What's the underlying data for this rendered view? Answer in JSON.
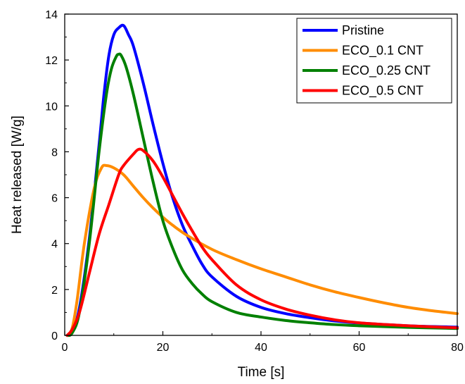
{
  "chart_data": {
    "type": "line",
    "title": "",
    "xlabel": "Time [s]",
    "ylabel": "Heat released [W/g]",
    "xlim": [
      0,
      80
    ],
    "ylim": [
      0,
      14
    ],
    "x_ticks": [
      0,
      20,
      40,
      60,
      80
    ],
    "y_ticks": [
      0,
      2,
      4,
      6,
      8,
      10,
      12,
      14
    ],
    "x_tick_labels": [
      "0",
      "20",
      "40",
      "60",
      "80"
    ],
    "y_tick_labels": [
      "0",
      "2",
      "4",
      "6",
      "8",
      "10",
      "12",
      "14"
    ],
    "grid": false,
    "legend_position": "top-right",
    "series": [
      {
        "name": "Pristine",
        "color": "#0000ff",
        "points": [
          [
            0.5,
            0
          ],
          [
            1.5,
            0.2
          ],
          [
            3,
            1.2
          ],
          [
            5,
            4.2
          ],
          [
            7,
            8.3
          ],
          [
            8,
            10.5
          ],
          [
            9,
            12.2
          ],
          [
            10,
            13.1
          ],
          [
            11,
            13.4
          ],
          [
            12,
            13.5
          ],
          [
            13,
            13.1
          ],
          [
            14,
            12.6
          ],
          [
            16,
            11.0
          ],
          [
            18,
            9.2
          ],
          [
            20,
            7.5
          ],
          [
            22,
            6.0
          ],
          [
            24,
            4.8
          ],
          [
            26,
            3.9
          ],
          [
            28,
            3.1
          ],
          [
            30,
            2.55
          ],
          [
            35,
            1.7
          ],
          [
            40,
            1.22
          ],
          [
            45,
            0.95
          ],
          [
            50,
            0.77
          ],
          [
            55,
            0.63
          ],
          [
            60,
            0.54
          ],
          [
            70,
            0.42
          ],
          [
            80,
            0.36
          ]
        ]
      },
      {
        "name": "ECO_0.1 CNT",
        "color": "#ff8c00",
        "points": [
          [
            0.5,
            0
          ],
          [
            1.5,
            0.3
          ],
          [
            2.5,
            1.5
          ],
          [
            4,
            4.0
          ],
          [
            6,
            6.4
          ],
          [
            7.5,
            7.3
          ],
          [
            8.5,
            7.4
          ],
          [
            10,
            7.3
          ],
          [
            12,
            7.0
          ],
          [
            14,
            6.5
          ],
          [
            16,
            6.0
          ],
          [
            18,
            5.55
          ],
          [
            20,
            5.15
          ],
          [
            22,
            4.8
          ],
          [
            25,
            4.35
          ],
          [
            30,
            3.75
          ],
          [
            35,
            3.3
          ],
          [
            40,
            2.9
          ],
          [
            45,
            2.55
          ],
          [
            50,
            2.2
          ],
          [
            55,
            1.9
          ],
          [
            60,
            1.65
          ],
          [
            65,
            1.42
          ],
          [
            70,
            1.22
          ],
          [
            75,
            1.07
          ],
          [
            80,
            0.95
          ]
        ]
      },
      {
        "name": "ECO_0.25 CNT",
        "color": "#008000",
        "points": [
          [
            0.5,
            0
          ],
          [
            1.5,
            0.1
          ],
          [
            3,
            1.0
          ],
          [
            5,
            4.0
          ],
          [
            7,
            8.0
          ],
          [
            8.5,
            10.5
          ],
          [
            9.5,
            11.6
          ],
          [
            10.5,
            12.15
          ],
          [
            11,
            12.25
          ],
          [
            11.5,
            12.2
          ],
          [
            12.5,
            11.7
          ],
          [
            14,
            10.5
          ],
          [
            16,
            8.6
          ],
          [
            18,
            6.7
          ],
          [
            20,
            5.0
          ],
          [
            22,
            3.8
          ],
          [
            24,
            2.85
          ],
          [
            26,
            2.25
          ],
          [
            28,
            1.8
          ],
          [
            30,
            1.47
          ],
          [
            35,
            1.0
          ],
          [
            40,
            0.8
          ],
          [
            45,
            0.65
          ],
          [
            50,
            0.55
          ],
          [
            55,
            0.47
          ],
          [
            60,
            0.42
          ],
          [
            70,
            0.35
          ],
          [
            80,
            0.3
          ]
        ]
      },
      {
        "name": "ECO_0.5 CNT",
        "color": "#ff0000",
        "points": [
          [
            0.5,
            0
          ],
          [
            1.5,
            0.25
          ],
          [
            3,
            1.0
          ],
          [
            5,
            2.7
          ],
          [
            7,
            4.4
          ],
          [
            9,
            5.7
          ],
          [
            11,
            7.0
          ],
          [
            12,
            7.4
          ],
          [
            14,
            7.9
          ],
          [
            15,
            8.1
          ],
          [
            16,
            8.05
          ],
          [
            18,
            7.6
          ],
          [
            20,
            6.9
          ],
          [
            22,
            6.1
          ],
          [
            24,
            5.3
          ],
          [
            26,
            4.55
          ],
          [
            28,
            3.85
          ],
          [
            30,
            3.3
          ],
          [
            35,
            2.2
          ],
          [
            40,
            1.55
          ],
          [
            45,
            1.15
          ],
          [
            50,
            0.88
          ],
          [
            55,
            0.68
          ],
          [
            60,
            0.55
          ],
          [
            70,
            0.42
          ],
          [
            80,
            0.33
          ]
        ]
      }
    ]
  }
}
